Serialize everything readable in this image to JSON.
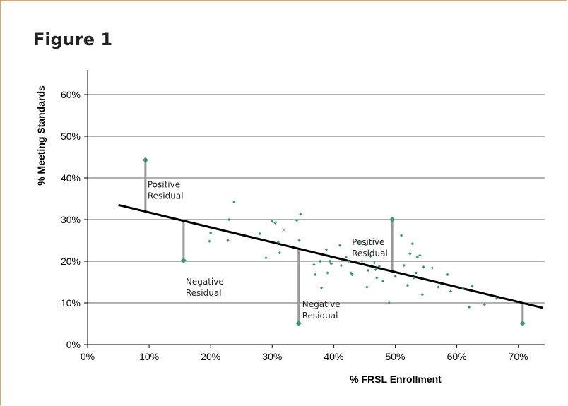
{
  "figure": {
    "title": "Figure 1"
  },
  "colors": {
    "point": "#3a9a6a",
    "fit_line": "#000000",
    "residual": "#999999",
    "grid": "#666666",
    "frame": "#e8a060"
  },
  "chart_data": {
    "type": "scatter",
    "title": "",
    "xlabel": "% FRSL Enrollment",
    "ylabel": "% Meeting Standards",
    "xlim": [
      0,
      0.74
    ],
    "ylim": [
      0,
      0.66
    ],
    "x_ticks": [
      0,
      0.1,
      0.2,
      0.3,
      0.4,
      0.5,
      0.6,
      0.7
    ],
    "x_tick_labels": [
      "0%",
      "10%",
      "20%",
      "30%",
      "40%",
      "50%",
      "60%",
      "70%"
    ],
    "y_ticks": [
      0,
      0.1,
      0.2,
      0.3,
      0.4,
      0.5,
      0.6
    ],
    "y_tick_labels": [
      "0%",
      "10%",
      "20%",
      "30%",
      "40%",
      "50%",
      "60%"
    ],
    "grid": "horizontal",
    "fit_line": {
      "x": [
        0.05,
        0.74
      ],
      "y": [
        0.335,
        0.088
      ]
    },
    "points": [
      [
        0.2,
        0.268
      ],
      [
        0.198,
        0.248
      ],
      [
        0.228,
        0.25
      ],
      [
        0.23,
        0.3
      ],
      [
        0.238,
        0.342
      ],
      [
        0.28,
        0.266
      ],
      [
        0.29,
        0.208
      ],
      [
        0.3,
        0.296
      ],
      [
        0.305,
        0.292
      ],
      [
        0.31,
        0.246
      ],
      [
        0.312,
        0.22
      ],
      [
        0.34,
        0.298
      ],
      [
        0.344,
        0.25
      ],
      [
        0.346,
        0.313
      ],
      [
        0.368,
        0.192
      ],
      [
        0.37,
        0.168
      ],
      [
        0.378,
        0.2
      ],
      [
        0.38,
        0.136
      ],
      [
        0.388,
        0.228
      ],
      [
        0.39,
        0.172
      ],
      [
        0.394,
        0.2
      ],
      [
        0.396,
        0.194
      ],
      [
        0.41,
        0.238
      ],
      [
        0.412,
        0.19
      ],
      [
        0.42,
        0.21
      ],
      [
        0.424,
        0.2
      ],
      [
        0.428,
        0.172
      ],
      [
        0.43,
        0.168
      ],
      [
        0.44,
        0.245
      ],
      [
        0.446,
        0.2
      ],
      [
        0.452,
        0.24
      ],
      [
        0.454,
        0.138
      ],
      [
        0.456,
        0.178
      ],
      [
        0.46,
        0.212
      ],
      [
        0.466,
        0.196
      ],
      [
        0.468,
        0.18
      ],
      [
        0.47,
        0.16
      ],
      [
        0.474,
        0.188
      ],
      [
        0.48,
        0.152
      ],
      [
        0.49,
        0.1
      ],
      [
        0.5,
        0.164
      ],
      [
        0.51,
        0.262
      ],
      [
        0.514,
        0.19
      ],
      [
        0.52,
        0.142
      ],
      [
        0.524,
        0.218
      ],
      [
        0.528,
        0.242
      ],
      [
        0.53,
        0.16
      ],
      [
        0.534,
        0.172
      ],
      [
        0.536,
        0.21
      ],
      [
        0.54,
        0.214
      ],
      [
        0.544,
        0.12
      ],
      [
        0.546,
        0.186
      ],
      [
        0.56,
        0.184
      ],
      [
        0.57,
        0.138
      ],
      [
        0.585,
        0.168
      ],
      [
        0.59,
        0.128
      ],
      [
        0.61,
        0.136
      ],
      [
        0.62,
        0.09
      ],
      [
        0.625,
        0.14
      ],
      [
        0.645,
        0.096
      ],
      [
        0.665,
        0.11
      ]
    ],
    "outlier_x": [
      0.319,
      0.275
    ],
    "residuals": [
      {
        "x": 0.094,
        "y": 0.443,
        "label_line1": "Positive",
        "label_line2": "Residual"
      },
      {
        "x": 0.156,
        "y": 0.202,
        "label_line1": "Negative",
        "label_line2": "Residual"
      },
      {
        "x": 0.343,
        "y": 0.051,
        "label_line1": "Negative",
        "label_line2": "Residual"
      },
      {
        "x": 0.495,
        "y": 0.3,
        "label_line1": "Positive",
        "label_line2": "Residual"
      },
      {
        "x": 0.707,
        "y": 0.051,
        "label_line1": "",
        "label_line2": ""
      }
    ]
  }
}
